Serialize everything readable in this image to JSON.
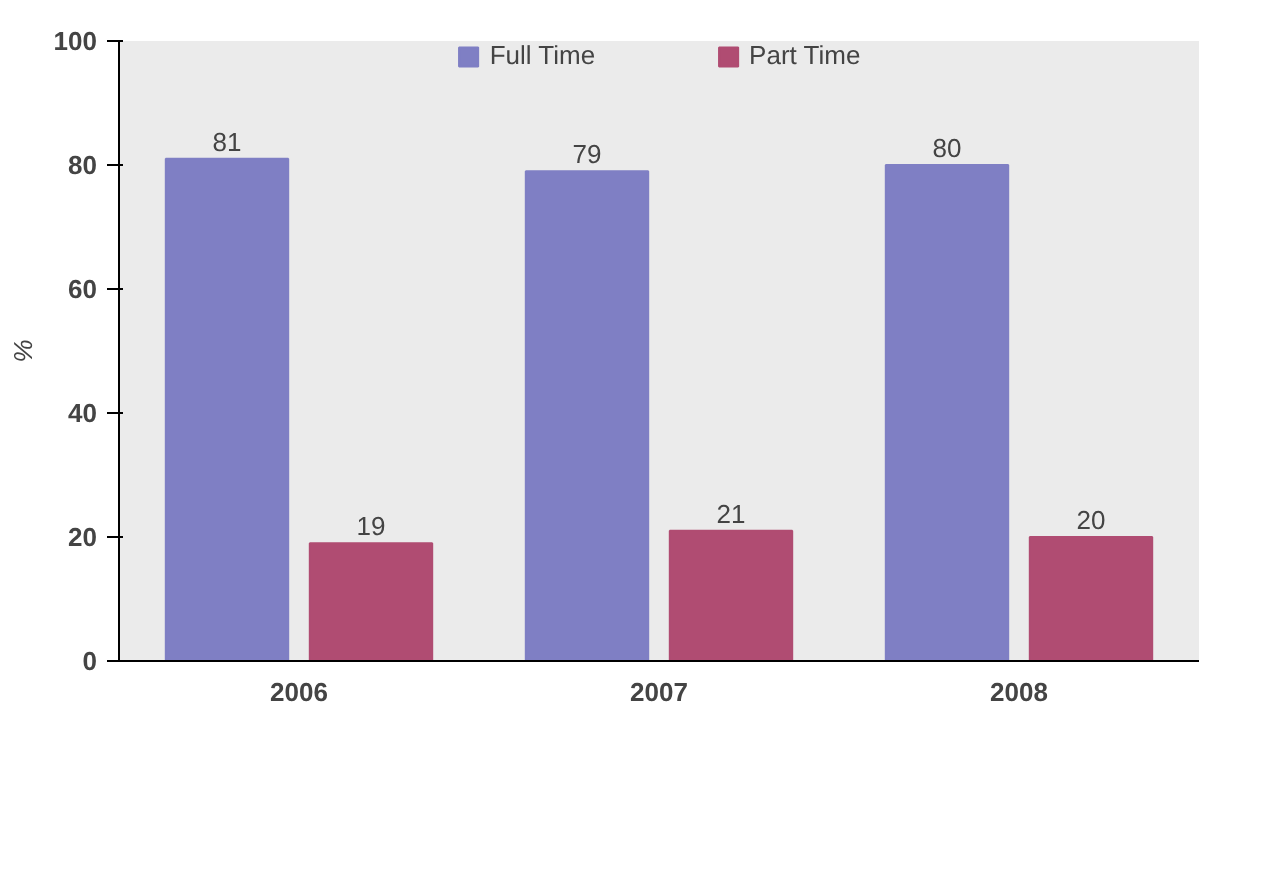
{
  "chart_data": {
    "type": "bar",
    "ylabel": "%",
    "categories": [
      "2006",
      "2007",
      "2008"
    ],
    "series": [
      {
        "name": "Full Time",
        "color": "#7f7fc4",
        "values": [
          81,
          79,
          80
        ]
      },
      {
        "name": "Part Time",
        "color": "#b04c72",
        "values": [
          19,
          21,
          20
        ]
      }
    ],
    "ylim": [
      0,
      100
    ],
    "yticks": [
      0,
      20,
      40,
      60,
      80,
      100
    ],
    "data_labels": true,
    "grid": false,
    "legend": "top"
  }
}
